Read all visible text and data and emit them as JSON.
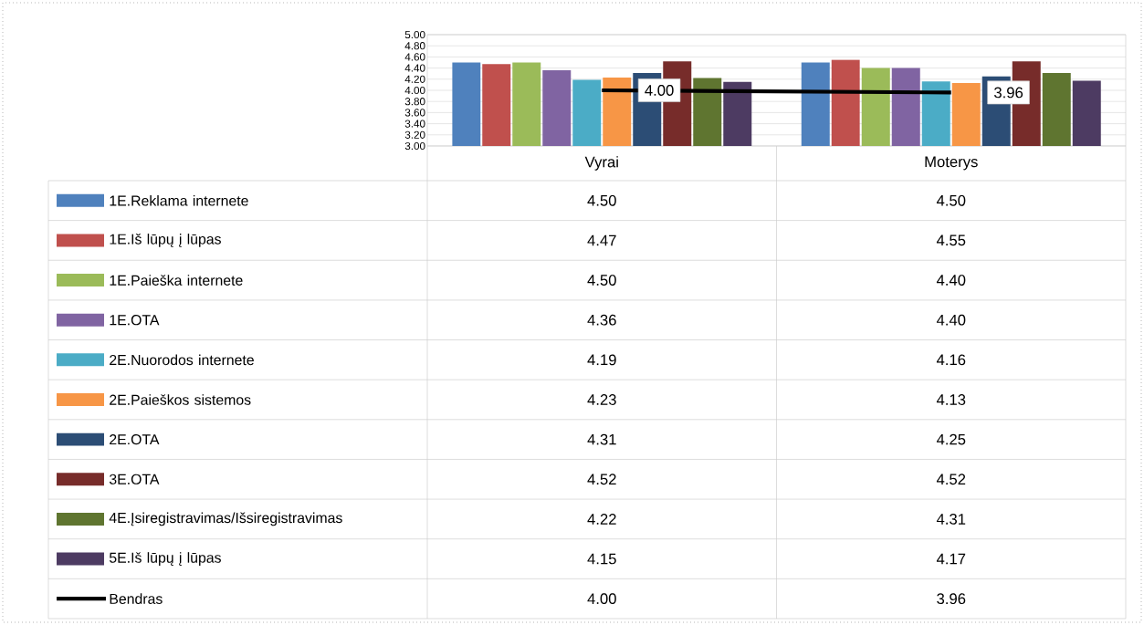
{
  "chart_data": {
    "type": "bar",
    "categories": [
      "Vyrai",
      "Moterys"
    ],
    "series": [
      {
        "name": "1E.Reklama internete",
        "color": "#4f81bd",
        "values": [
          4.5,
          4.5
        ],
        "value_labels": [
          "4.50",
          "4.50"
        ]
      },
      {
        "name": "1E.Iš lūpų į lūpas",
        "color": "#c0504d",
        "values": [
          4.47,
          4.55
        ],
        "value_labels": [
          "4.47",
          "4.55"
        ]
      },
      {
        "name": "1E.Paieška internete",
        "color": "#9bbb59",
        "values": [
          4.5,
          4.4
        ],
        "value_labels": [
          "4.50",
          "4.40"
        ]
      },
      {
        "name": "1E.OTA",
        "color": "#8064a2",
        "values": [
          4.36,
          4.4
        ],
        "value_labels": [
          "4.36",
          "4.40"
        ]
      },
      {
        "name": "2E.Nuorodos internete",
        "color": "#4bacc6",
        "values": [
          4.19,
          4.16
        ],
        "value_labels": [
          "4.19",
          "4.16"
        ]
      },
      {
        "name": "2E.Paieškos sistemos",
        "color": "#f79646",
        "values": [
          4.23,
          4.13
        ],
        "value_labels": [
          "4.23",
          "4.13"
        ]
      },
      {
        "name": "2E.OTA",
        "color": "#2c4d75",
        "values": [
          4.31,
          4.25
        ],
        "value_labels": [
          "4.31",
          "4.25"
        ]
      },
      {
        "name": "3E.OTA",
        "color": "#772c2a",
        "values": [
          4.52,
          4.52
        ],
        "value_labels": [
          "4.52",
          "4.52"
        ]
      },
      {
        "name": "4E.Įsiregistravimas/Išsiregistravimas",
        "color": "#5f7530",
        "values": [
          4.22,
          4.31
        ],
        "value_labels": [
          "4.22",
          "4.31"
        ]
      },
      {
        "name": "5E.Iš lūpų į lūpas",
        "color": "#4d3b62",
        "values": [
          4.15,
          4.17
        ],
        "value_labels": [
          "4.15",
          "4.17"
        ]
      },
      {
        "name": "Bendras",
        "type": "line",
        "color": "#000000",
        "values": [
          4.0,
          3.96
        ],
        "value_labels": [
          "4.00",
          "3.96"
        ]
      }
    ],
    "ylim": [
      3,
      5
    ],
    "yticks": [
      {
        "value": 3,
        "label": "3.00"
      },
      {
        "value": 3.2,
        "label": "3.20"
      },
      {
        "value": 3.4,
        "label": "3.40"
      },
      {
        "value": 3.6,
        "label": "3.60"
      },
      {
        "value": 3.8,
        "label": "3.80"
      },
      {
        "value": 4,
        "label": "4.00"
      },
      {
        "value": 4.2,
        "label": "4.20"
      },
      {
        "value": 4.4,
        "label": "4.40"
      },
      {
        "value": 4.6,
        "label": "4.60"
      },
      {
        "value": 4.8,
        "label": "4.80"
      },
      {
        "value": 5,
        "label": "5.00"
      }
    ],
    "grid": "y",
    "legend": "bottom"
  }
}
